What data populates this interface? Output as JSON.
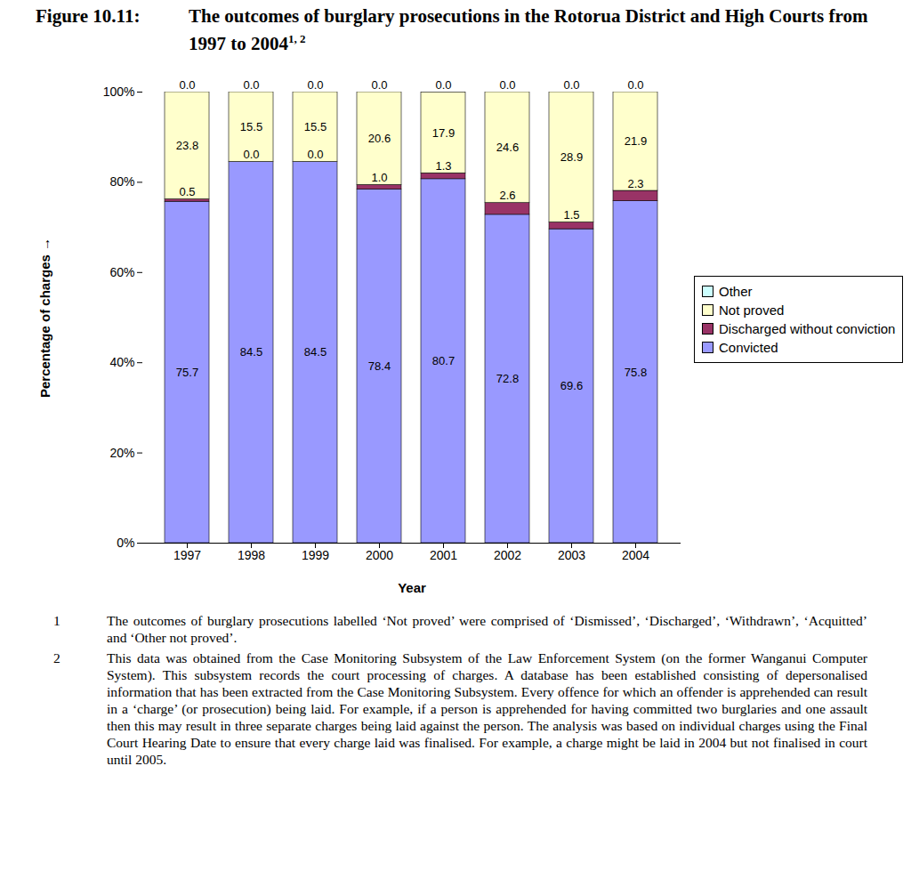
{
  "chart_data": {
    "type": "bar",
    "title_label": "Figure 10.11:",
    "title": "The outcomes of burglary prosecutions in the Rotorua District and High Courts from 1997 to 2004",
    "title_refs": "1, 2",
    "x_label": "Year",
    "y_label": "Percentage of charges",
    "categories": [
      "1997",
      "1998",
      "1999",
      "2000",
      "2001",
      "2002",
      "2003",
      "2004"
    ],
    "series": [
      {
        "name": "Convicted",
        "color": "#9999ff",
        "values": [
          75.7,
          84.5,
          84.5,
          78.4,
          80.7,
          72.8,
          69.6,
          75.8
        ],
        "value_labels": [
          "75.7",
          "84.5",
          "84.5",
          "78.4",
          "80.7",
          "72.8",
          "69.6",
          "75.8"
        ]
      },
      {
        "name": "Discharged without conviction",
        "color": "#993366",
        "values": [
          0.5,
          0,
          0,
          1.0,
          1.3,
          2.6,
          1.5,
          2.3
        ],
        "value_labels": [
          "0.5",
          "0.0",
          "0.0",
          "1.0",
          "1.3",
          "2.6",
          "1.5",
          "2.3"
        ]
      },
      {
        "name": "Not proved",
        "color": "#ffffcc",
        "values": [
          23.8,
          15.5,
          15.5,
          20.6,
          17.9,
          24.6,
          28.9,
          21.9
        ],
        "value_labels": [
          "23.8",
          "15.5",
          "15.5",
          "20.6",
          "17.9",
          "24.6",
          "28.9",
          "21.9"
        ]
      },
      {
        "name": "Other",
        "color": "#ccffff",
        "values": [
          0,
          0,
          0,
          0,
          0,
          0,
          0,
          0
        ],
        "value_labels": [
          "0.0",
          "0.0",
          "0.0",
          "0.0",
          "0.0",
          "0.0",
          "0.0",
          "0.0"
        ]
      }
    ],
    "ylim": [
      0,
      100
    ],
    "yticks": [
      {
        "value": 0,
        "label": "0%"
      },
      {
        "value": 20,
        "label": "20%"
      },
      {
        "value": 40,
        "label": "40%"
      },
      {
        "value": 60,
        "label": "60%"
      },
      {
        "value": 80,
        "label": "80%"
      },
      {
        "value": 100,
        "label": "100%"
      }
    ],
    "stacked": true,
    "data_labels": true,
    "grid": false,
    "legend": "right",
    "notes": [
      {
        "number": "1",
        "text": "The outcomes of burglary prosecutions labelled ‘Not proved’ were comprised of ‘Dismissed’, ‘Discharged’, ‘Withdrawn’, ‘Acquitted’ and ‘Other not proved’."
      },
      {
        "number": "2",
        "text": "This data was obtained from the Case Monitoring Subsystem of the Law Enforcement System (on the former Wanganui Computer System). This subsystem records the court processing of charges. A database has been established consisting of depersonalised information that has been extracted from the Case Monitoring Subsystem. Every offence for which an offender is apprehended can result in a ‘charge’ (or prosecution) being laid. For example, if a person is apprehended for having committed two burglaries and one assault then this may result in three separate charges being laid against the person. The analysis was based on individual charges using the Final Court Hearing Date to ensure that every charge laid was finalised. For example, a charge might be laid in 2004 but not finalised in court until 2005."
      }
    ]
  }
}
